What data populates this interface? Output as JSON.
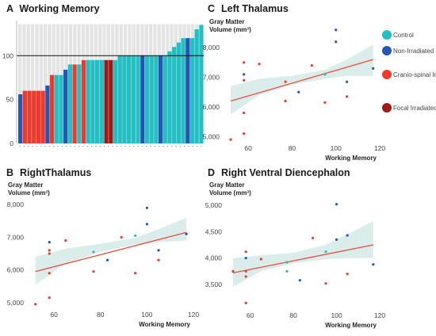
{
  "colors": {
    "control": "#22bfc4",
    "nonirr": "#2457b3",
    "cranio": "#ee3a2c",
    "focal": "#9e1a16",
    "fit": "#ee4a3c",
    "band": "#d6ebe8",
    "bg_bar": "#e4e4e4"
  },
  "legend": {
    "items": [
      {
        "key": "control",
        "label": "Control"
      },
      {
        "key": "nonirr",
        "label": "Non-Irradiated Survivor"
      },
      {
        "key": "cranio",
        "label": "Cranio-spinal Irradiated Survivor"
      },
      {
        "key": "focal",
        "label": "Focal Irradiated Survivor"
      }
    ]
  },
  "chart_data": [
    {
      "id": "A",
      "letter": "A",
      "title": "Working Memory",
      "type": "bar",
      "ylim": [
        0,
        140
      ],
      "yticks": [
        0,
        50,
        100
      ],
      "yticklabels": [
        "0",
        "50",
        "100"
      ],
      "reference_line": 100,
      "values": [
        56,
        60,
        60,
        60,
        60,
        60,
        66,
        78,
        78,
        78,
        84,
        90,
        90,
        90,
        95,
        95,
        95,
        95,
        95,
        95,
        95,
        95,
        100,
        100,
        100,
        100,
        100,
        100,
        100,
        100,
        100,
        100,
        100,
        105,
        110,
        115,
        120,
        120,
        120,
        130,
        135
      ],
      "groups": [
        "nonirr",
        "cranio",
        "cranio",
        "cranio",
        "cranio",
        "cranio",
        "nonirr",
        "cranio",
        "control",
        "control",
        "nonirr",
        "control",
        "cranio",
        "control",
        "cranio",
        "control",
        "control",
        "control",
        "control",
        "focal",
        "focal",
        "control",
        "control",
        "control",
        "control",
        "control",
        "control",
        "nonirr",
        "control",
        "control",
        "control",
        "nonirr",
        "control",
        "control",
        "control",
        "control",
        "control",
        "nonirr",
        "control",
        "control",
        "control"
      ],
      "n_background": 44
    },
    {
      "id": "B",
      "letter": "B",
      "title": "RightThalamus",
      "type": "scatter",
      "ylabel": [
        "Gray Matter",
        "Volume (mm³)"
      ],
      "xlabel": "Working Memory",
      "xlim": [
        48,
        120
      ],
      "ylim": [
        4850,
        8150
      ],
      "xticks": [
        60,
        80,
        100,
        120
      ],
      "xticklabels": [
        "60",
        "80",
        "100",
        "120"
      ],
      "yticks": [
        5000,
        6000,
        7000,
        8000
      ],
      "yticklabels": [
        "5,000",
        "6,000",
        "7,000",
        "8,000"
      ],
      "fit": {
        "x": [
          52,
          117
        ],
        "y": [
          5950,
          7150
        ]
      },
      "band": {
        "x": [
          52,
          65,
          80,
          95,
          105,
          117
        ],
        "lower": [
          5550,
          6200,
          6550,
          6780,
          6850,
          6900
        ],
        "upper": [
          6400,
          6650,
          6800,
          6980,
          7250,
          7600
        ]
      },
      "points": [
        {
          "x": 52,
          "y": 4950,
          "g": "cranio"
        },
        {
          "x": 58,
          "y": 6850,
          "g": "nonirr"
        },
        {
          "x": 58,
          "y": 6600,
          "g": "cranio"
        },
        {
          "x": 58,
          "y": 6500,
          "g": "cranio"
        },
        {
          "x": 58,
          "y": 5900,
          "g": "cranio"
        },
        {
          "x": 58,
          "y": 5150,
          "g": "cranio"
        },
        {
          "x": 65,
          "y": 6900,
          "g": "cranio"
        },
        {
          "x": 77,
          "y": 6550,
          "g": "control"
        },
        {
          "x": 77,
          "y": 5950,
          "g": "cranio"
        },
        {
          "x": 83,
          "y": 6300,
          "g": "nonirr"
        },
        {
          "x": 89,
          "y": 7000,
          "g": "cranio"
        },
        {
          "x": 95,
          "y": 7050,
          "g": "control"
        },
        {
          "x": 95,
          "y": 5900,
          "g": "cranio"
        },
        {
          "x": 100,
          "y": 7900,
          "g": "nonirr"
        },
        {
          "x": 100,
          "y": 7400,
          "g": "nonirr"
        },
        {
          "x": 105,
          "y": 6600,
          "g": "nonirr"
        },
        {
          "x": 105,
          "y": 6300,
          "g": "cranio"
        },
        {
          "x": 117,
          "y": 7100,
          "g": "nonirr"
        }
      ]
    },
    {
      "id": "C",
      "letter": "C",
      "title": "Left Thalamus",
      "type": "scatter",
      "ylabel": [
        "Gray Matter",
        "Volume (mm³)"
      ],
      "xlabel": "Working Memory",
      "xlim": [
        48,
        120
      ],
      "ylim": [
        4850,
        8700
      ],
      "xticks": [
        60,
        80,
        100,
        120
      ],
      "xticklabels": [
        "60",
        "80",
        "100",
        "120"
      ],
      "yticks": [
        5000,
        6000,
        7000,
        8000
      ],
      "yticklabels": [
        "5,000",
        "6,000",
        "7,000",
        "8,000"
      ],
      "fit": {
        "x": [
          52,
          117
        ],
        "y": [
          6200,
          7600
        ]
      },
      "band": {
        "x": [
          52,
          65,
          80,
          95,
          105,
          117
        ],
        "lower": [
          5750,
          6400,
          6750,
          6950,
          7050,
          7050
        ],
        "upper": [
          6700,
          6950,
          7050,
          7250,
          7600,
          8100
        ]
      },
      "points": [
        {
          "x": 52,
          "y": 4900,
          "g": "cranio"
        },
        {
          "x": 58,
          "y": 7500,
          "g": "cranio"
        },
        {
          "x": 58,
          "y": 7100,
          "g": "nonirr"
        },
        {
          "x": 58,
          "y": 6900,
          "g": "cranio"
        },
        {
          "x": 58,
          "y": 5800,
          "g": "cranio"
        },
        {
          "x": 58,
          "y": 5100,
          "g": "cranio"
        },
        {
          "x": 65,
          "y": 7450,
          "g": "cranio"
        },
        {
          "x": 77,
          "y": 6850,
          "g": "cranio"
        },
        {
          "x": 77,
          "y": 6200,
          "g": "cranio"
        },
        {
          "x": 83,
          "y": 6500,
          "g": "nonirr"
        },
        {
          "x": 89,
          "y": 7400,
          "g": "cranio"
        },
        {
          "x": 95,
          "y": 7100,
          "g": "control"
        },
        {
          "x": 95,
          "y": 6150,
          "g": "cranio"
        },
        {
          "x": 100,
          "y": 8600,
          "g": "nonirr"
        },
        {
          "x": 100,
          "y": 8200,
          "g": "nonirr"
        },
        {
          "x": 105,
          "y": 6850,
          "g": "nonirr"
        },
        {
          "x": 105,
          "y": 6350,
          "g": "cranio"
        },
        {
          "x": 117,
          "y": 7300,
          "g": "nonirr"
        }
      ]
    },
    {
      "id": "D",
      "letter": "D",
      "title": "Right Ventral Diencephalon",
      "type": "scatter",
      "ylabel": [
        "Gray Matter",
        "Volume (mm³)"
      ],
      "xlabel": "Working Memory",
      "xlim": [
        48,
        120
      ],
      "ylim": [
        3050,
        5150
      ],
      "xticks": [
        60,
        80,
        100,
        120
      ],
      "xticklabels": [
        "60",
        "80",
        "100",
        "120"
      ],
      "yticks": [
        3500,
        4000,
        4500,
        5000
      ],
      "yticklabels": [
        "3,500",
        "4,000",
        "4,500",
        "5,000"
      ],
      "fit": {
        "x": [
          52,
          117
        ],
        "y": [
          3720,
          4250
        ]
      },
      "band": {
        "x": [
          52,
          65,
          80,
          95,
          105,
          117
        ],
        "lower": [
          3450,
          3750,
          3900,
          3980,
          4000,
          4000
        ],
        "upper": [
          4000,
          4050,
          4100,
          4250,
          4450,
          4700
        ]
      },
      "points": [
        {
          "x": 52,
          "y": 3750,
          "g": "cranio"
        },
        {
          "x": 58,
          "y": 4120,
          "g": "cranio"
        },
        {
          "x": 58,
          "y": 4000,
          "g": "nonirr"
        },
        {
          "x": 58,
          "y": 3750,
          "g": "cranio"
        },
        {
          "x": 58,
          "y": 3650,
          "g": "cranio"
        },
        {
          "x": 58,
          "y": 3150,
          "g": "cranio"
        },
        {
          "x": 65,
          "y": 3980,
          "g": "cranio"
        },
        {
          "x": 77,
          "y": 3920,
          "g": "control"
        },
        {
          "x": 77,
          "y": 3750,
          "g": "control"
        },
        {
          "x": 83,
          "y": 3580,
          "g": "nonirr"
        },
        {
          "x": 89,
          "y": 4380,
          "g": "cranio"
        },
        {
          "x": 95,
          "y": 4120,
          "g": "control"
        },
        {
          "x": 95,
          "y": 3520,
          "g": "cranio"
        },
        {
          "x": 100,
          "y": 5020,
          "g": "nonirr"
        },
        {
          "x": 100,
          "y": 4350,
          "g": "nonirr"
        },
        {
          "x": 105,
          "y": 4430,
          "g": "nonirr"
        },
        {
          "x": 105,
          "y": 3700,
          "g": "cranio"
        },
        {
          "x": 117,
          "y": 3880,
          "g": "nonirr"
        }
      ]
    }
  ]
}
